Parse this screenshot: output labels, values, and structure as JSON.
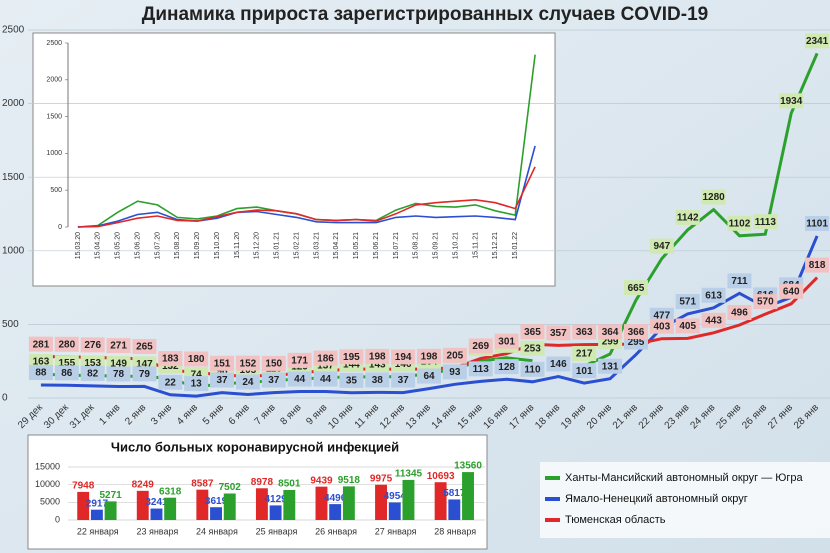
{
  "chart_data": [
    {
      "type": "line",
      "title": "Динамика прироста зарегистрированных случаев COVID-19",
      "categories": [
        "29 дек",
        "30 дек",
        "31 дек",
        "1 янв",
        "2 янв",
        "3 янв",
        "4 янв",
        "5 янв",
        "6 янв",
        "7 янв",
        "8 янв",
        "9 янв",
        "10 янв",
        "11 янв",
        "12 янв",
        "13 янв",
        "14 янв",
        "15 янв",
        "16 янв",
        "17 янв",
        "18 янв",
        "19 янв",
        "20 янв",
        "21 янв",
        "22 янв",
        "23 янв",
        "24 янв",
        "25 янв",
        "26 янв",
        "27 янв",
        "28 янв"
      ],
      "ylim": [
        0,
        2500
      ],
      "yticks": [
        0,
        500,
        1000,
        1500,
        2000,
        2500
      ],
      "grid": true,
      "series": [
        {
          "name": "Ханты-Мансийский автономный округ — Югра",
          "color": "#2ca02c",
          "label_bg": "#cfe9b0",
          "values": [
            163,
            155,
            153,
            149,
            147,
            132,
            74,
            98,
            105,
            118,
            129,
            137,
            144,
            143,
            146,
            164,
            199,
            251,
            273,
            253,
            null,
            217,
            299,
            665,
            947,
            1142,
            1280,
            1102,
            1113,
            1934,
            2341
          ]
        },
        {
          "name": "Ямало-Ненецкий автономный округ",
          "color": "#2a4fd0",
          "label_bg": "#b9cfe8",
          "values": [
            88,
            86,
            82,
            78,
            79,
            22,
            13,
            37,
            24,
            37,
            44,
            44,
            35,
            38,
            37,
            64,
            93,
            113,
            128,
            110,
            146,
            101,
            131,
            295,
            477,
            571,
            613,
            711,
            616,
            684,
            1101
          ]
        },
        {
          "name": "Тюменская область",
          "color": "#e02828",
          "label_bg": "#f2c2c2",
          "values": [
            281,
            280,
            276,
            271,
            265,
            183,
            180,
            151,
            152,
            150,
            171,
            186,
            195,
            198,
            194,
            198,
            205,
            269,
            301,
            365,
            357,
            363,
            364,
            366,
            403,
            405,
            443,
            496,
            570,
            640,
            818
          ]
        }
      ]
    },
    {
      "type": "line",
      "categories": [
        "15.03.20",
        "15.04.20",
        "15.05.20",
        "15.06.20",
        "15.07.20",
        "15.08.20",
        "15.09.20",
        "15.10.20",
        "15.11.20",
        "15.12.20",
        "15.01.21",
        "15.02.21",
        "15.03.21",
        "15.04.21",
        "15.05.21",
        "15.06.21",
        "15.07.21",
        "15.08.21",
        "15.09.21",
        "15.10.21",
        "15.11.21",
        "15.12.21",
        "15.01.22",
        null
      ],
      "ylim": [
        0,
        2500
      ],
      "yticks": [
        0,
        500,
        1000,
        1500,
        2000,
        2500
      ],
      "series": [
        {
          "color": "#2ca02c",
          "values": [
            0,
            20,
            200,
            350,
            300,
            130,
            110,
            150,
            250,
            270,
            220,
            180,
            100,
            90,
            100,
            90,
            230,
            320,
            280,
            270,
            300,
            220,
            160,
            2341
          ]
        },
        {
          "color": "#2a4fd0",
          "values": [
            0,
            15,
            80,
            170,
            200,
            100,
            80,
            120,
            200,
            210,
            170,
            130,
            70,
            60,
            60,
            60,
            130,
            150,
            130,
            140,
            150,
            130,
            100,
            1101
          ]
        },
        {
          "color": "#e02828",
          "values": [
            0,
            5,
            60,
            120,
            150,
            90,
            80,
            140,
            200,
            230,
            220,
            180,
            100,
            90,
            100,
            80,
            180,
            300,
            330,
            350,
            370,
            330,
            250,
            818
          ]
        }
      ]
    },
    {
      "type": "bar",
      "title": "Число больных коронавирусной  инфекцией",
      "categories": [
        "22 января",
        "23 января",
        "24 января",
        "25 января",
        "26 января",
        "27 января",
        "28 января"
      ],
      "ylim": [
        0,
        15000
      ],
      "yticks": [
        0,
        5000,
        10000,
        15000
      ],
      "series": [
        {
          "color": "#e02828",
          "values": [
            7948,
            8249,
            8587,
            8978,
            9439,
            9975,
            10693
          ]
        },
        {
          "color": "#2a4fd0",
          "values": [
            2917,
            3241,
            3619,
            4129,
            4496,
            4954,
            5817
          ]
        },
        {
          "color": "#2ca02c",
          "values": [
            5271,
            6318,
            7502,
            8501,
            9518,
            11345,
            13560
          ]
        }
      ]
    }
  ]
}
